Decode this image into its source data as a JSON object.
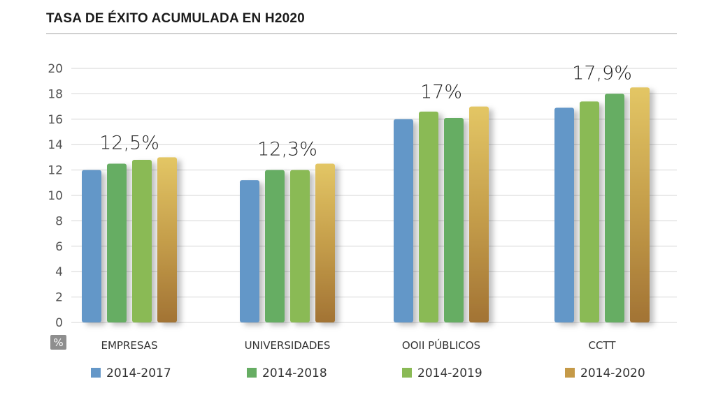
{
  "chart_data": {
    "type": "bar",
    "title": "TASA DE ÉXITO ACUMULADA EN H2020",
    "ylabel": "%",
    "ylim": [
      0,
      20
    ],
    "yticks": [
      0,
      2,
      4,
      6,
      8,
      10,
      12,
      14,
      16,
      18,
      20
    ],
    "grid": true,
    "legend_position": "bottom",
    "categories": [
      "EMPRESAS",
      "UNIVERSIDADES",
      "OOII PÚBLICOS",
      "CCTT"
    ],
    "annotations": [
      "12,5%",
      "12,3%",
      "17%",
      "17,9%"
    ],
    "series": [
      {
        "name": "2014-2017",
        "color": "#6497c8",
        "values": [
          12.0,
          11.2,
          16.0,
          16.9
        ]
      },
      {
        "name": "2014-2018",
        "color": "#66ad63",
        "values": [
          12.5,
          12.0,
          16.6,
          17.4
        ]
      },
      {
        "name": "2014-2019",
        "color": "#8aba55",
        "values": [
          12.8,
          12.0,
          16.1,
          18.0
        ]
      },
      {
        "name": "2014-2020",
        "color": "#c59a48",
        "values": [
          13.0,
          12.5,
          17.0,
          18.5
        ]
      }
    ],
    "bar_color_overrides": {
      "2": {
        "1": "#8aba55",
        "2": "#66ad63"
      },
      "3": {
        "1": "#8aba55",
        "2": "#66ad63"
      }
    }
  }
}
